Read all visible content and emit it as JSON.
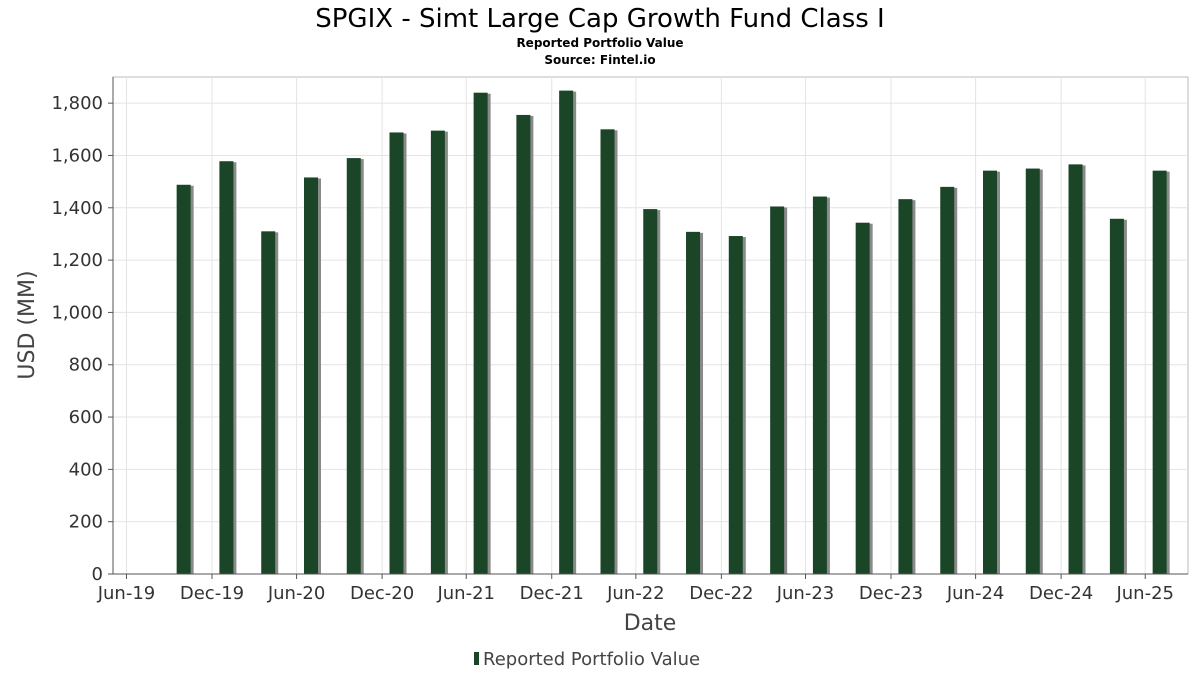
{
  "chart_data": {
    "type": "bar",
    "title": "SPGIX - Simt Large Cap Growth Fund Class I",
    "subtitle": "Reported Portfolio Value",
    "source": "Source: Fintel.io",
    "xlabel": "Date",
    "ylabel": "USD (MM)",
    "ylim": [
      0,
      1900
    ],
    "xlim": [
      "2019-06-01",
      "2025-09-30"
    ],
    "yticks": [
      0,
      200,
      400,
      600,
      800,
      1000,
      1200,
      1400,
      1600,
      1800
    ],
    "ytick_labels": [
      "0",
      "200",
      "400",
      "600",
      "800",
      "1,000",
      "1,200",
      "1,400",
      "1,600",
      "1,800"
    ],
    "xticks": [
      "2019-06-30",
      "2019-12-31",
      "2020-06-30",
      "2020-12-31",
      "2021-06-30",
      "2021-12-31",
      "2022-06-30",
      "2022-12-31",
      "2023-06-30",
      "2023-12-31",
      "2024-06-30",
      "2024-12-31",
      "2025-06-30"
    ],
    "xtick_labels": [
      "Jun-19",
      "Dec-19",
      "Jun-20",
      "Dec-20",
      "Jun-21",
      "Dec-21",
      "Jun-22",
      "Dec-22",
      "Jun-23",
      "Dec-23",
      "Jun-24",
      "Dec-24",
      "Jun-25"
    ],
    "grid": true,
    "legend_position": "bottom",
    "bar_color": "#1a4526",
    "shadow_color": "#8a8a8a",
    "series": [
      {
        "name": "Reported Portfolio Value",
        "x": [
          "2019-10-31",
          "2020-01-31",
          "2020-04-30",
          "2020-07-31",
          "2020-10-31",
          "2021-01-31",
          "2021-04-30",
          "2021-07-31",
          "2021-10-31",
          "2022-01-31",
          "2022-04-30",
          "2022-07-31",
          "2022-10-31",
          "2023-01-31",
          "2023-04-30",
          "2023-07-31",
          "2023-10-31",
          "2024-01-31",
          "2024-04-30",
          "2024-07-31",
          "2024-10-31",
          "2025-01-31",
          "2025-04-30",
          "2025-07-31"
        ],
        "values": [
          1488,
          1578,
          1310,
          1516,
          1590,
          1688,
          1695,
          1840,
          1755,
          1848,
          1700,
          1395,
          1308,
          1292,
          1405,
          1443,
          1343,
          1433,
          1480,
          1542,
          1550,
          1566,
          1358,
          1542
        ]
      }
    ]
  }
}
